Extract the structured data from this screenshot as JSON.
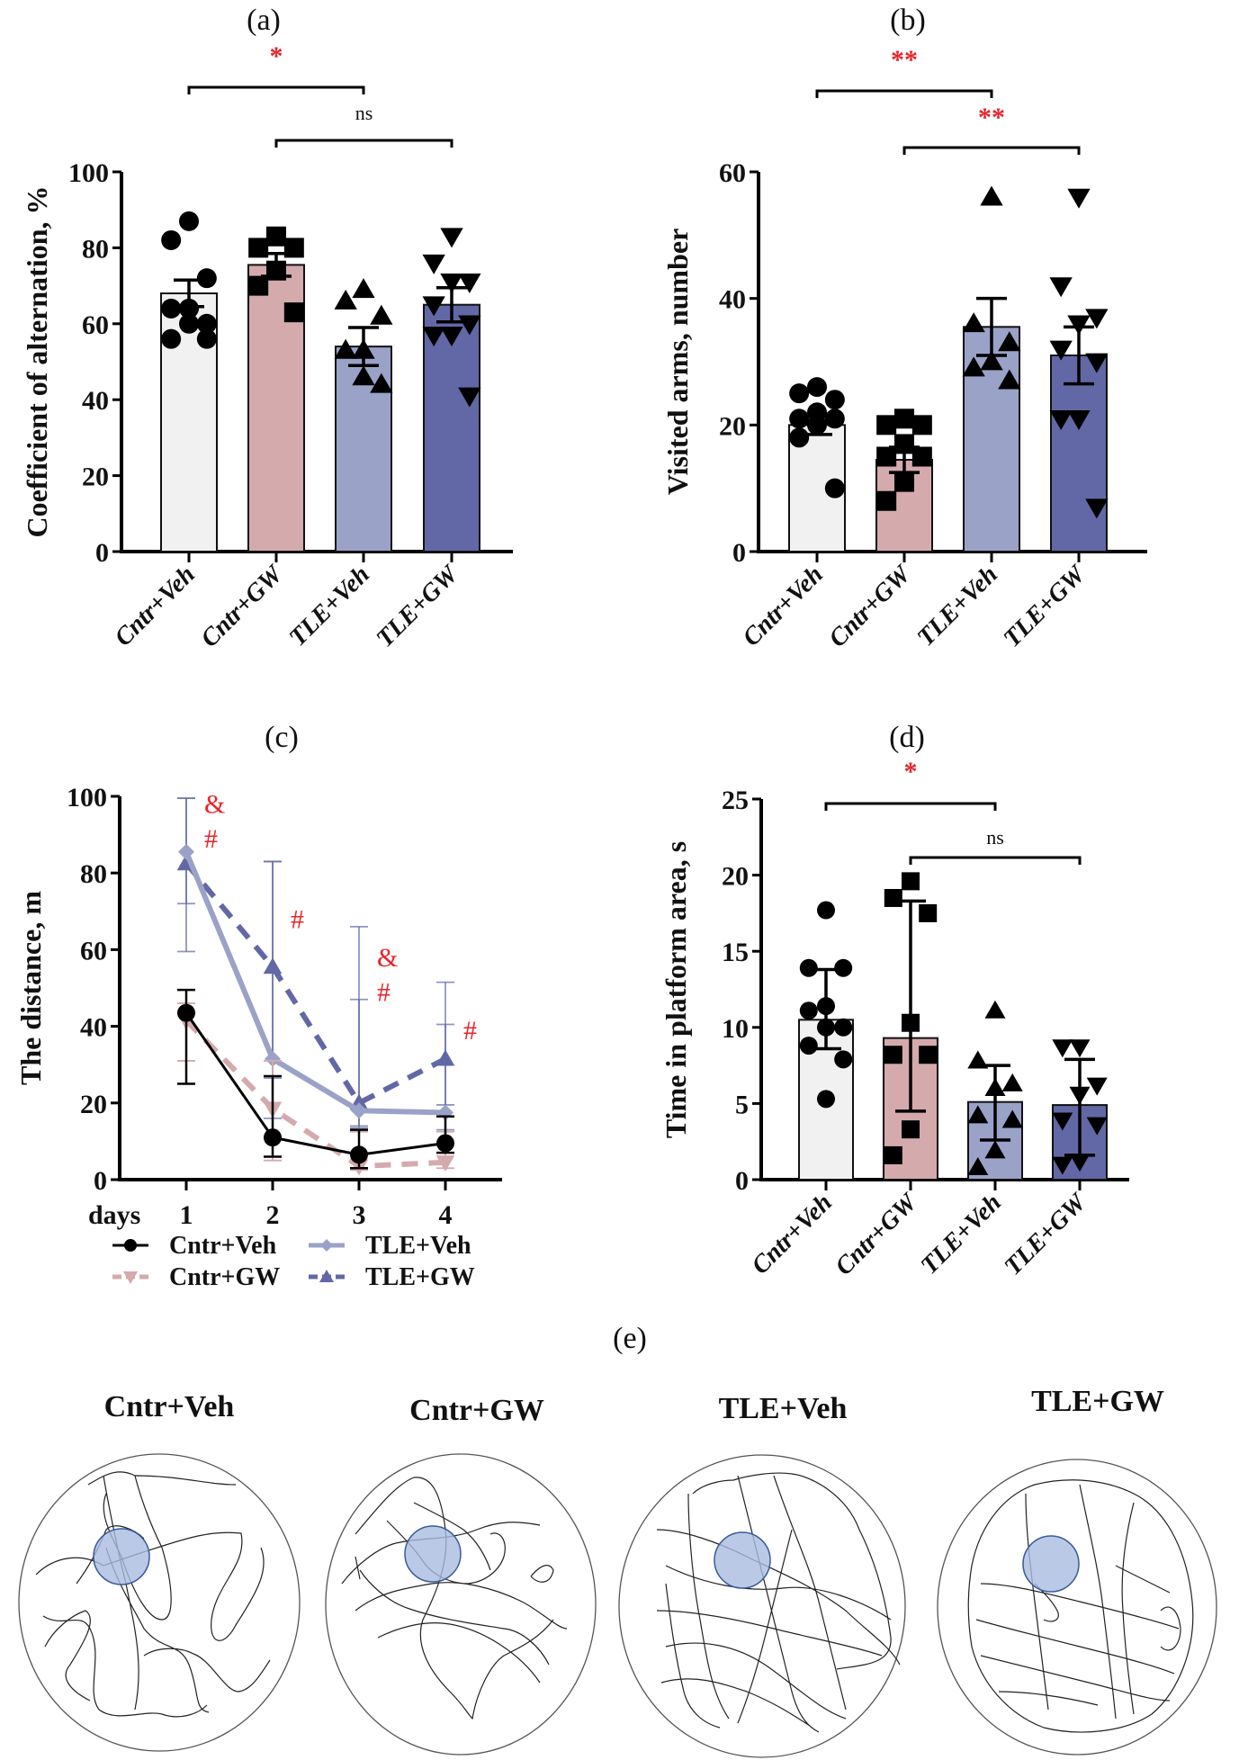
{
  "figure": {
    "panel_e_label": "(e)",
    "colors": {
      "cntr_veh": "#f1f1f1",
      "cntr_gw": "#d4aaad",
      "tle_veh": "#9aa2c8",
      "tle_gw": "#6268a5",
      "significance": "#e8232a",
      "platform": "#a9bde0",
      "platform_stroke": "#3a5a9a"
    }
  },
  "chart_data": [
    {
      "id": "a",
      "panel_label": "(a)",
      "type": "bar",
      "title": "",
      "ylabel": "Coefficient of alternation, %",
      "xlabel": "",
      "ylim": [
        0,
        100
      ],
      "yticks": [
        0,
        20,
        40,
        60,
        80,
        100
      ],
      "categories": [
        "Cntr+Veh",
        "Cntr+GW",
        "TLE+Veh",
        "TLE+GW"
      ],
      "values": [
        68,
        75.5,
        54,
        65
      ],
      "error": [
        3.5,
        3,
        5,
        4.5
      ],
      "points": [
        [
          87,
          82,
          72,
          64,
          64,
          60,
          60,
          56,
          56
        ],
        [
          83,
          80,
          80,
          74,
          70,
          63
        ],
        [
          69,
          66,
          62,
          53,
          53,
          44,
          46
        ],
        [
          83,
          76,
          71,
          71,
          65,
          60,
          57,
          57,
          41
        ]
      ],
      "markers": [
        "circle",
        "square",
        "triangle-up",
        "triangle-down"
      ],
      "significance": [
        {
          "from": 0,
          "to": 2,
          "label": "*"
        },
        {
          "from": 1,
          "to": 3,
          "label": "ns"
        }
      ]
    },
    {
      "id": "b",
      "panel_label": "(b)",
      "type": "bar",
      "title": "",
      "ylabel": "Visited arms, number",
      "xlabel": "",
      "ylim": [
        0,
        60
      ],
      "yticks": [
        0,
        20,
        40,
        60
      ],
      "categories": [
        "Cntr+Veh",
        "Cntr+GW",
        "TLE+Veh",
        "TLE+GW"
      ],
      "values": [
        20,
        14.5,
        35.5,
        31
      ],
      "error": [
        1.5,
        2,
        4.5,
        4.5
      ],
      "points": [
        [
          26,
          25,
          24,
          22,
          21,
          21,
          20,
          18,
          10
        ],
        [
          21,
          20,
          20,
          17,
          15,
          15,
          11,
          8
        ],
        [
          56,
          36,
          33,
          30,
          29,
          27
        ],
        [
          56,
          42,
          37,
          36,
          32,
          30,
          21,
          21,
          7
        ]
      ],
      "markers": [
        "circle",
        "square",
        "triangle-up",
        "triangle-down"
      ],
      "significance": [
        {
          "from": 0,
          "to": 2,
          "label": "**"
        },
        {
          "from": 1,
          "to": 3,
          "label": "**"
        }
      ]
    },
    {
      "id": "c",
      "panel_label": "(c)",
      "type": "line",
      "title": "",
      "ylabel": "The distance, m",
      "xlabel": "days",
      "ylim": [
        0,
        100
      ],
      "yticks": [
        0,
        20,
        40,
        60,
        80,
        100
      ],
      "x": [
        1,
        2,
        3,
        4
      ],
      "series": [
        {
          "name": "Cntr+Veh",
          "values": [
            43.5,
            11,
            6.5,
            9.5
          ],
          "err_low": [
            25,
            6,
            3,
            7
          ],
          "err_high": [
            49.5,
            27,
            13,
            16.5
          ],
          "color": "#000000",
          "dash": false,
          "marker": "circle"
        },
        {
          "name": "Cntr+GW",
          "values": [
            41.5,
            18.5,
            3.5,
            4.5
          ],
          "err_low": [
            31,
            5,
            2.5,
            3
          ],
          "err_high": [
            46,
            31,
            12.5,
            12.5
          ],
          "color": "#d4aaad",
          "dash": true,
          "marker": "triangle-down"
        },
        {
          "name": "TLE+Veh",
          "values": [
            85.5,
            31.5,
            18,
            17.5
          ],
          "err_low": [
            72,
            16,
            14,
            13
          ],
          "err_high": [
            99.5,
            83,
            66,
            51.5
          ],
          "color": "#9aa2c8",
          "dash": false,
          "marker": "diamond"
        },
        {
          "name": "TLE+GW",
          "values": [
            82.5,
            55.5,
            20,
            31.5
          ],
          "err_low": [
            59.5,
            26.5,
            13.5,
            19.5
          ],
          "err_high": [
            99.5,
            83,
            47,
            40.5
          ],
          "color": "#6268a5",
          "dash": true,
          "marker": "triangle-up"
        }
      ],
      "annotations": [
        {
          "x": 1,
          "y": 98,
          "text": "&"
        },
        {
          "x": 1,
          "y": 89,
          "text": "#"
        },
        {
          "x": 2,
          "y": 68,
          "text": "#"
        },
        {
          "x": 3,
          "y": 58,
          "text": "&"
        },
        {
          "x": 3,
          "y": 49,
          "text": "#"
        },
        {
          "x": 4,
          "y": 39,
          "text": "#"
        }
      ],
      "legend": [
        "Cntr+Veh",
        "Cntr+GW",
        "TLE+Veh",
        "TLE+GW"
      ],
      "legend_position": "bottom"
    },
    {
      "id": "d",
      "panel_label": "(d)",
      "type": "bar",
      "title": "",
      "ylabel": "Time in platform area, s",
      "xlabel": "",
      "ylim": [
        0,
        25
      ],
      "yticks": [
        0,
        5,
        10,
        15,
        20,
        25
      ],
      "categories": [
        "Cntr+Veh",
        "Cntr+GW",
        "TLE+Veh",
        "TLE+GW"
      ],
      "values": [
        10.5,
        9.3,
        5.1,
        4.9
      ],
      "err_low": [
        8.6,
        4.5,
        2.6,
        1.6
      ],
      "err_high": [
        13.8,
        18.3,
        7.5,
        7.9
      ],
      "points": [
        [
          17.7,
          13.9,
          13.9,
          11.4,
          11.1,
          10,
          10,
          8.8,
          7.9,
          5.3
        ],
        [
          19.6,
          18.5,
          17.5,
          10.3,
          8.2,
          8.2,
          3.3,
          1.6
        ],
        [
          11.1,
          7.8,
          6.3,
          6.0,
          4.2,
          3.9,
          1.9,
          0.8
        ],
        [
          8.7,
          8.7,
          6.2,
          5.6,
          3.9,
          3.6,
          1.2,
          1.0
        ]
      ],
      "markers": [
        "circle",
        "square",
        "triangle-up",
        "triangle-down"
      ],
      "significance": [
        {
          "from": 0,
          "to": 2,
          "label": "*"
        },
        {
          "from": 1,
          "to": 3,
          "label": "ns"
        }
      ]
    }
  ],
  "tracks": [
    {
      "label": "Cntr+Veh"
    },
    {
      "label": "Cntr+GW"
    },
    {
      "label": "TLE+Veh"
    },
    {
      "label": "TLE+GW"
    }
  ]
}
